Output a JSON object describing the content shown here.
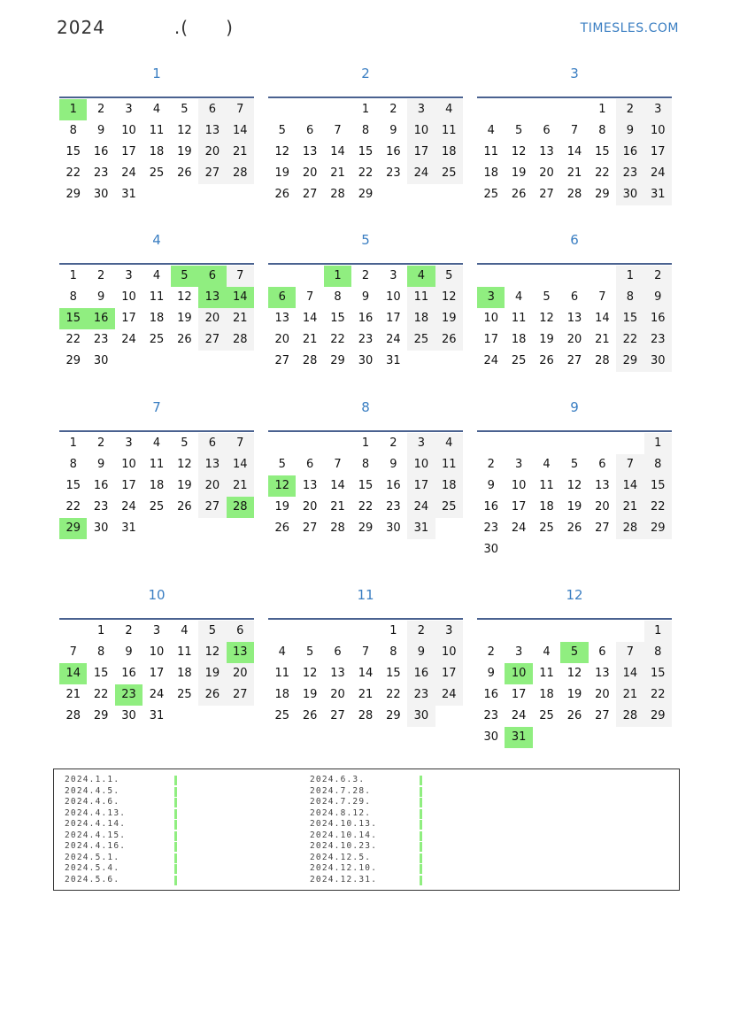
{
  "header": {
    "year": "2024",
    "title_mid": ".(",
    "title_end": ")",
    "logo": "TIMESLES.COM"
  },
  "calendar": {
    "year": 2024,
    "week_start": "monday",
    "colors": {
      "holiday": "#90ee80",
      "weekend": "#f3f3f3",
      "month_title": "#3a7ec2"
    },
    "months": [
      {
        "label": "1"
      },
      {
        "label": "2"
      },
      {
        "label": "3"
      },
      {
        "label": "4"
      },
      {
        "label": "5"
      },
      {
        "label": "6"
      },
      {
        "label": "7"
      },
      {
        "label": "8"
      },
      {
        "label": "9"
      },
      {
        "label": "10"
      },
      {
        "label": "11"
      },
      {
        "label": "12"
      }
    ],
    "holidays": [
      [
        1,
        1
      ],
      [
        4,
        5
      ],
      [
        4,
        6
      ],
      [
        4,
        13
      ],
      [
        4,
        14
      ],
      [
        4,
        15
      ],
      [
        4,
        16
      ],
      [
        5,
        1
      ],
      [
        5,
        4
      ],
      [
        5,
        6
      ],
      [
        6,
        3
      ],
      [
        7,
        28
      ],
      [
        7,
        29
      ],
      [
        8,
        12
      ],
      [
        10,
        13
      ],
      [
        10,
        14
      ],
      [
        10,
        23
      ],
      [
        12,
        5
      ],
      [
        12,
        10
      ],
      [
        12,
        31
      ]
    ]
  },
  "legend": {
    "left": [
      "2024.1.1.",
      "2024.4.5.",
      "2024.4.6.",
      "2024.4.13.",
      "2024.4.14.",
      "2024.4.15.",
      "2024.4.16.",
      "2024.5.1.",
      "2024.5.4.",
      "2024.5.6."
    ],
    "right": [
      "2024.6.3.",
      "2024.7.28.",
      "2024.7.29.",
      "2024.8.12.",
      "2024.10.13.",
      "2024.10.14.",
      "2024.10.23.",
      "2024.12.5.",
      "2024.12.10.",
      "2024.12.31."
    ]
  }
}
